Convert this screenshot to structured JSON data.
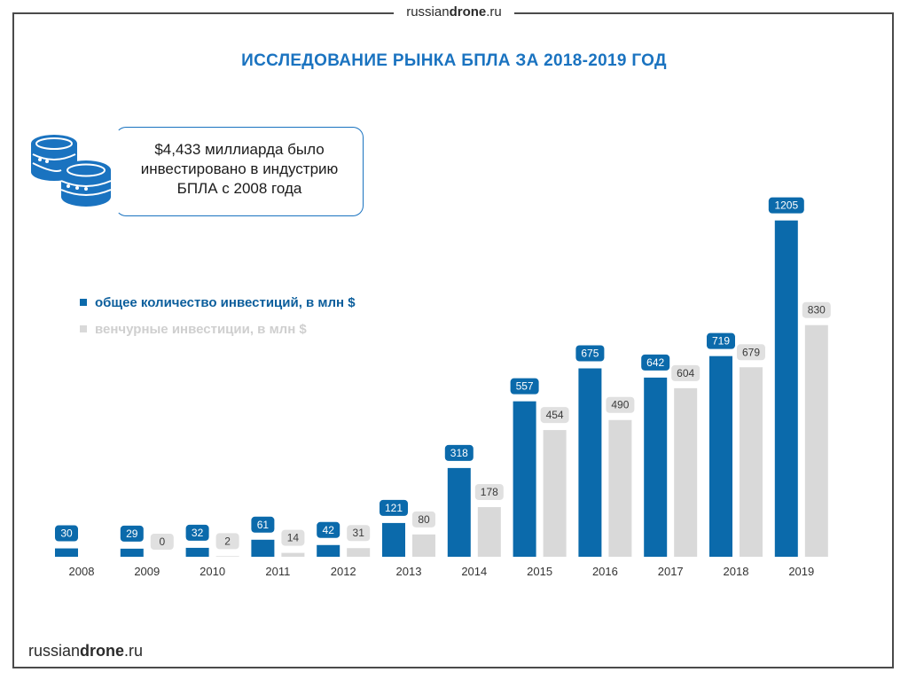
{
  "brand": {
    "part1": "russian",
    "part2": "drone",
    "part3": ".ru"
  },
  "title": "ИССЛЕДОВАНИЕ РЫНКА БПЛА ЗА 2018-2019 ГОД",
  "info": {
    "line1": "$4,433 миллиарда было",
    "line2": "инвестировано в индустрию",
    "line3": "БПЛА с 2008 года",
    "icon": "coins-icon"
  },
  "colors": {
    "primary": "#0b6aab",
    "secondary": "#d9d9d9",
    "title": "#1a73c0",
    "frame": "#4a4a4a"
  },
  "chart_data": {
    "type": "bar",
    "categories": [
      "2008",
      "2009",
      "2010",
      "2011",
      "2012",
      "2013",
      "2014",
      "2015",
      "2016",
      "2017",
      "2018",
      "2019"
    ],
    "series": [
      {
        "name": "общее количество инвестиций, в млн $",
        "values": [
          30,
          29,
          32,
          61,
          42,
          121,
          318,
          557,
          675,
          642,
          719,
          1205
        ]
      },
      {
        "name": "венчурные инвестиции, в млн $",
        "values": [
          null,
          0,
          2,
          14,
          31,
          80,
          178,
          454,
          490,
          604,
          679,
          830
        ]
      }
    ],
    "legend_position": "top-left",
    "grid": false
  }
}
